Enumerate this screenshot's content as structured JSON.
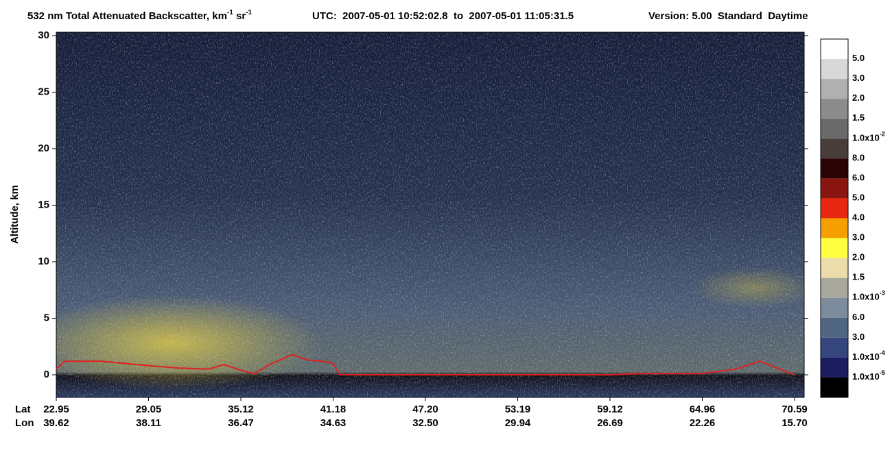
{
  "chart_data": {
    "type": "curtain",
    "title": [
      "532 nm Total Attenuated Backscatter, km",
      "-1",
      " sr",
      "-1"
    ],
    "subtitle": "UTC:  2007-05-01 10:52:02.8  to  2007-05-01 11:05:31.5",
    "version": "Version: 5.00  Standard  Daytime",
    "y_label": "Altitude, km",
    "ylim": [
      -2,
      30.3
    ],
    "yticks": [
      0,
      5,
      10,
      15,
      20,
      25,
      30
    ],
    "x_row_labels": [
      "Lat",
      "Lon"
    ],
    "xticks": [
      22.95,
      29.05,
      35.12,
      41.18,
      {
        "value": 47.2,
        "label": "47.20"
      },
      53.19,
      59.12,
      64.96,
      70.59
    ],
    "xticks2": [
      39.62,
      38.11,
      36.47,
      34.63,
      {
        "value": 32.5,
        "label": "32.50"
      },
      29.94,
      26.69,
      22.26,
      {
        "value": 15.7,
        "label": "15.70"
      }
    ],
    "surface": {
      "color": "#e02020",
      "x": [
        22.95,
        23.5,
        26,
        29.05,
        31,
        33,
        34,
        35.12,
        36,
        37,
        38.5,
        39.5,
        40.5,
        41.18,
        41.6,
        47.2,
        53.19,
        59.12,
        61,
        64.96,
        67,
        68.5,
        69.5,
        70.59
      ],
      "values": [
        0.5,
        1.2,
        1.2,
        0.8,
        0.6,
        0.5,
        0.9,
        0.4,
        0.1,
        0.9,
        1.8,
        1.3,
        1.2,
        1.0,
        0,
        0,
        0,
        0,
        0.1,
        0.1,
        0.5,
        1.2,
        0.6,
        0
      ]
    },
    "colorbar": {
      "colors": [
        "#ffffff",
        "#d8d8d8",
        "#b0b0b0",
        "#8c8c8c",
        "#6a6a6a",
        "#4a3e3a",
        "#2a0404",
        "#8a1410",
        "#e82810",
        "#f5a000",
        "#ffff40",
        "#ecdcac",
        "#a8a89c",
        "#7c8c9c",
        "#506680",
        "#34467c",
        "#1c1c60",
        "#000000"
      ],
      "labels": [
        {
          "text": "5.0"
        },
        {
          "text": "3.0"
        },
        {
          "text": "2.0"
        },
        {
          "text": "1.5"
        },
        {
          "text": "1.0x10",
          "sup": "-2"
        },
        {
          "text": "8.0"
        },
        {
          "text": "6.0"
        },
        {
          "text": "5.0"
        },
        {
          "text": "4.0"
        },
        {
          "text": "3.0"
        },
        {
          "text": "2.0"
        },
        {
          "text": "1.5"
        },
        {
          "text": "1.0x10",
          "sup": "-3"
        },
        {
          "text": "6.0"
        },
        {
          "text": "3.0"
        },
        {
          "text": "1.0x10",
          "sup": "-4"
        },
        {
          "text": "1.0x10",
          "sup": "-5"
        }
      ]
    }
  }
}
